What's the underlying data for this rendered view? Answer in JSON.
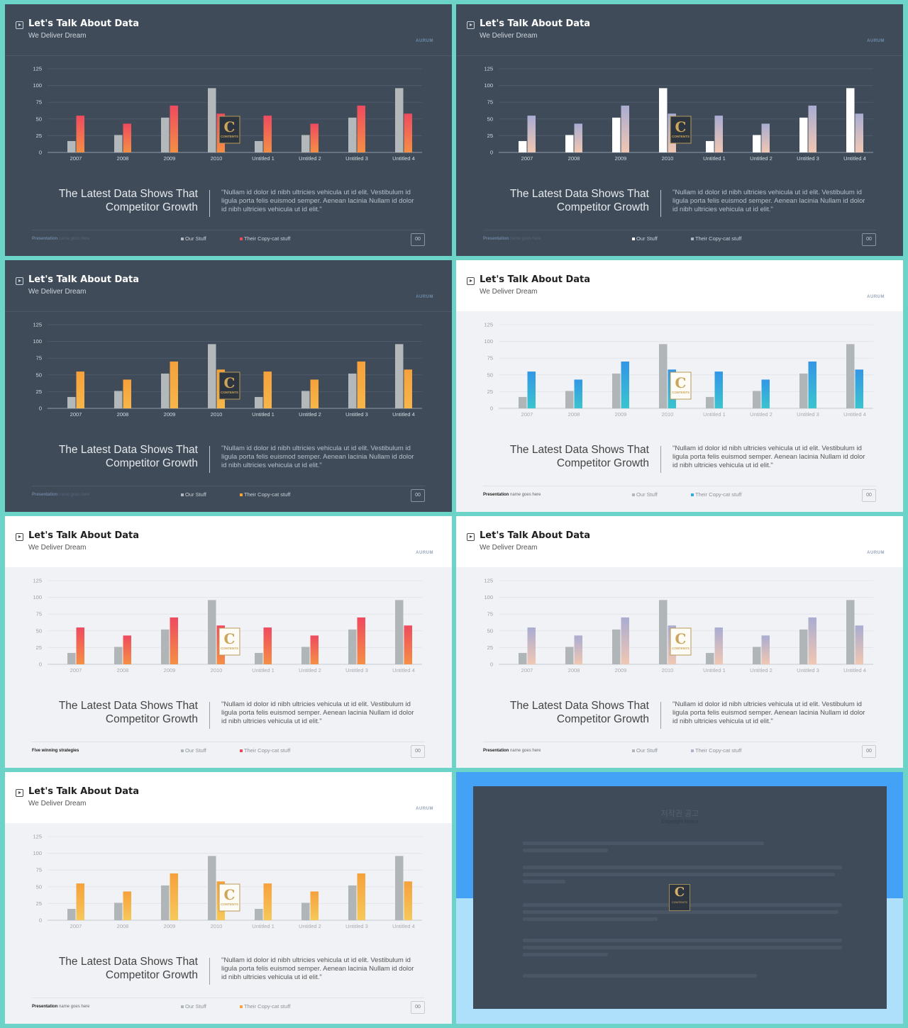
{
  "common": {
    "title": "Let's Talk About Data",
    "subtitle": "We Deliver Dream",
    "brand": "AURUM",
    "headline_line1": "The Latest Data Shows That",
    "headline_line2": "Competitor Growth",
    "quote": "\"Nullam id dolor id nibh ultricies vehicula ut id elit. Vestibulum id ligula porta felis euismod semper. Aenean lacinia Nullam id dolor id nibh ultricies vehicula ut id elit.\"",
    "legend_ours": "Our Stuff",
    "legend_theirs": "Their Copy-cat stuff",
    "page_number": "00",
    "footer_bold": "Presentation",
    "footer_rest": "name goes here",
    "logo_letter": "C",
    "logo_text": "CONTENTS"
  },
  "slides": [
    {
      "theme": "dark",
      "ours_color": "#b3b8bb",
      "theirs_top": "#ef4a5f",
      "theirs_bottom": "#f58f45",
      "footer_bold": "Presentation",
      "footer_rest": "name goes here",
      "legend_ours_color": "#b3b8bb",
      "legend_theirs_color": "#ee4a5c"
    },
    {
      "theme": "dark",
      "ours_color": "#ffffff",
      "theirs_top": "#a9acd2",
      "theirs_bottom": "#f1c7b2",
      "footer_bold": "Presentation",
      "footer_rest": "name goes here",
      "legend_ours_color": "#ffffff",
      "legend_theirs_color": "#b2b2cc"
    },
    {
      "theme": "dark",
      "ours_color": "#b3b8bb",
      "theirs_top": "#f6a13b",
      "theirs_bottom": "#f7b64a",
      "footer_bold": "Presentation",
      "footer_rest": "name goes here",
      "legend_ours_color": "#b3b8bb",
      "legend_theirs_color": "#f6a33c"
    },
    {
      "theme": "light",
      "ours_color": "#b0b5b7",
      "theirs_top": "#3396e6",
      "theirs_bottom": "#3bc4cf",
      "footer_bold": "Presentation",
      "footer_rest": "name goes here",
      "legend_ours_color": "#b0b5b7",
      "legend_theirs_color": "#35a7e0"
    },
    {
      "theme": "light",
      "ours_color": "#b0b5b7",
      "theirs_top": "#ef4a5f",
      "theirs_bottom": "#f58f45",
      "footer_bold": "Five winning strategies",
      "footer_rest": "",
      "legend_ours_color": "#b0b5b7",
      "legend_theirs_color": "#ee4a5c"
    },
    {
      "theme": "light",
      "ours_color": "#b0b5b7",
      "theirs_top": "#a9acd2",
      "theirs_bottom": "#f1c7b2",
      "footer_bold": "Presentation",
      "footer_rest": "name goes here",
      "legend_ours_color": "#b0b5b7",
      "legend_theirs_color": "#b2b2cc"
    },
    {
      "theme": "light",
      "ours_color": "#b0b5b7",
      "theirs_top": "#f6a13b",
      "theirs_bottom": "#f6c85a",
      "footer_bold": "Presentation",
      "footer_rest": "name goes here",
      "legend_ours_color": "#b0b5b7",
      "legend_theirs_color": "#f6a33c"
    }
  ],
  "chart_data": {
    "type": "bar",
    "categories": [
      "2007",
      "2008",
      "2009",
      "2010",
      "Untitled 1",
      "Untitled 2",
      "Untitled 3",
      "Untitled 4"
    ],
    "series": [
      {
        "name": "Our Stuff",
        "values": [
          17,
          26,
          52,
          96,
          17,
          26,
          52,
          96
        ]
      },
      {
        "name": "Their Copy-cat stuff",
        "values": [
          55,
          43,
          70,
          58,
          55,
          43,
          70,
          58
        ]
      }
    ],
    "yticks": [
      0,
      25,
      50,
      75,
      100,
      125
    ],
    "ylim": [
      0,
      125
    ],
    "grid": true,
    "legend_position": "bottom"
  },
  "copyright": {
    "title": "저작권 공고",
    "subtitle": "Copyright Notice"
  }
}
